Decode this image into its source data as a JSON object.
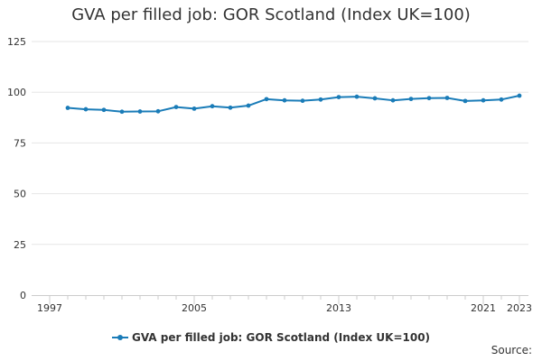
{
  "chart_data": {
    "type": "line",
    "title": "GVA per filled job: GOR Scotland (Index UK=100)",
    "xlabel": "",
    "ylabel": "",
    "x": [
      1998,
      1999,
      2000,
      2001,
      2002,
      2003,
      2004,
      2005,
      2006,
      2007,
      2008,
      2009,
      2010,
      2011,
      2012,
      2013,
      2014,
      2015,
      2016,
      2017,
      2018,
      2019,
      2020,
      2021,
      2022,
      2023
    ],
    "series": [
      {
        "name": "GVA per filled job: GOR Scotland (Index UK=100)",
        "color": "#1a7cb8",
        "values": [
          92.3,
          91.6,
          91.3,
          90.4,
          90.5,
          90.6,
          92.7,
          91.9,
          93.1,
          92.4,
          93.4,
          96.6,
          96.0,
          95.8,
          96.4,
          97.6,
          97.8,
          97.0,
          96.0,
          96.7,
          97.1,
          97.2,
          95.7,
          96.0,
          96.4,
          98.3
        ]
      }
    ],
    "xlim": [
      1997,
      2023
    ],
    "ylim": [
      0,
      125
    ],
    "x_ticks": [
      "1997",
      "2005",
      "2013",
      "2021",
      "2023"
    ],
    "y_ticks": [
      "0",
      "25",
      "50",
      "75",
      "100",
      "125"
    ],
    "grid": true,
    "legend_position": "bottom"
  },
  "source_label": "Source:"
}
